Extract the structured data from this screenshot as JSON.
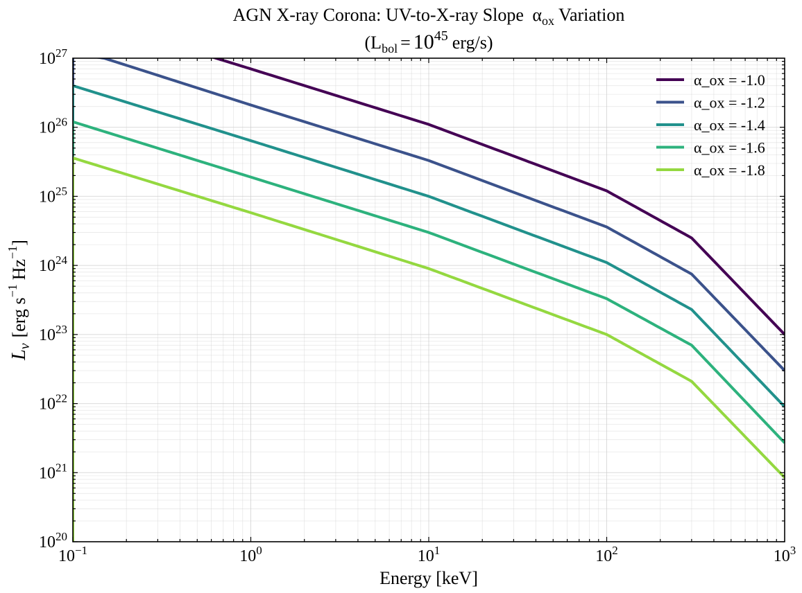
{
  "chart_data": {
    "type": "line",
    "title_line1": "AGN X-ray Corona: UV-to-X-ray Slope",
    "title_alpha": "α",
    "title_alpha_sub": "ox",
    "title_suffix": "Variation",
    "title_line2_open": "(L",
    "title_line2_sub": "bol",
    "title_line2_eq": "=",
    "title_line2_base": "10",
    "title_line2_exp": "45",
    "title_line2_unit": "erg/s)",
    "xlabel": "Energy [keV]",
    "ylabel_main": "L",
    "ylabel_sub": "ν",
    "ylabel_units_open": "[erg s",
    "ylabel_units_exp1": "−1",
    "ylabel_units_mid": "Hz",
    "ylabel_units_exp2": "−1",
    "ylabel_units_close": "]",
    "xscale": "log",
    "yscale": "log",
    "xlim": [
      0.1,
      1000
    ],
    "ylim": [
      1e+20,
      1e+27
    ],
    "grid": true,
    "legend_position": "top-right",
    "x_ticks": [
      {
        "value": 0.1,
        "base": "10",
        "exp": "−1"
      },
      {
        "value": 1,
        "base": "10",
        "exp": "0"
      },
      {
        "value": 10,
        "base": "10",
        "exp": "1"
      },
      {
        "value": 100,
        "base": "10",
        "exp": "2"
      },
      {
        "value": 1000,
        "base": "10",
        "exp": "3"
      }
    ],
    "y_ticks": [
      {
        "value": 1e+20,
        "base": "10",
        "exp": "20"
      },
      {
        "value": 1e+21,
        "base": "10",
        "exp": "21"
      },
      {
        "value": 1e+22,
        "base": "10",
        "exp": "22"
      },
      {
        "value": 1e+23,
        "base": "10",
        "exp": "23"
      },
      {
        "value": 1e+24,
        "base": "10",
        "exp": "24"
      },
      {
        "value": 1e+25,
        "base": "10",
        "exp": "25"
      },
      {
        "value": 1e+26,
        "base": "10",
        "exp": "26"
      },
      {
        "value": 1e+27,
        "base": "10",
        "exp": "27"
      }
    ],
    "series": [
      {
        "name": "α_ox = -1.0",
        "color": "#440154",
        "x": [
          0.1,
          0.6,
          1,
          10,
          100,
          300,
          1000
        ],
        "y": [
          3.6e+27,
          1.05e+27,
          7e+26,
          1.1e+26,
          1.2e+25,
          2.5e+24,
          1e+23
        ]
      },
      {
        "name": "α_ox = -1.2",
        "color": "#3b528b",
        "x": [
          0.1,
          0.15,
          1,
          10,
          100,
          300,
          1000
        ],
        "y": [
          1.16e+27,
          1e+27,
          2.1e+26,
          3.3e+25,
          3.6e+24,
          7.5e+23,
          3e+22
        ]
      },
      {
        "name": "α_ox = -1.4",
        "color": "#21918c",
        "x": [
          0.1,
          1,
          10,
          100,
          300,
          1000
        ],
        "y": [
          4e+26,
          6.4e+25,
          1e+25,
          1.1e+24,
          2.3e+23,
          9e+21
        ]
      },
      {
        "name": "α_ox = -1.6",
        "color": "#2db27d",
        "x": [
          0.1,
          1,
          10,
          100,
          300,
          1000
        ],
        "y": [
          1.2e+26,
          1.9e+25,
          3e+24,
          3.3e+23,
          7e+22,
          2.7e+21
        ]
      },
      {
        "name": "α_ox = -1.8",
        "color": "#94d840",
        "x": [
          0.1,
          1,
          10,
          100,
          300,
          1000
        ],
        "y": [
          3.6e+25,
          5.8e+24,
          9e+23,
          1e+23,
          2.1e+22,
          8.5e+20
        ]
      }
    ]
  }
}
